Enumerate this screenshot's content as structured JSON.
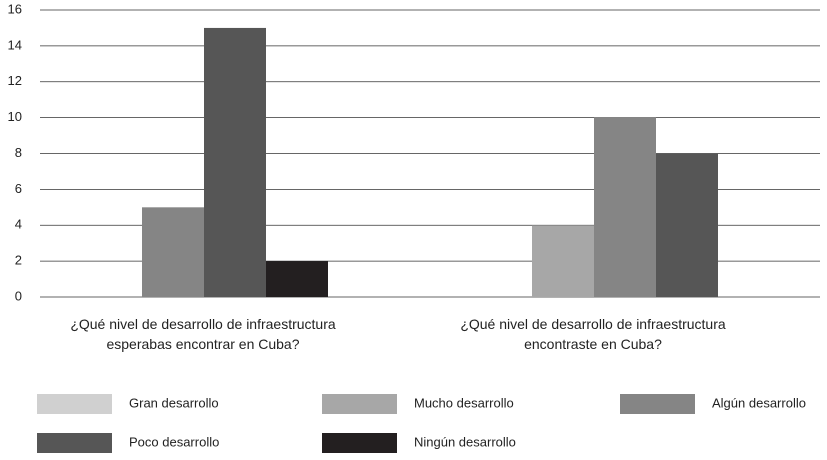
{
  "chart_data": {
    "type": "bar",
    "categories": [
      "¿Qué nivel de desarrollo de infraestructura esperabas encontrar en Cuba?",
      "¿Qué nivel de desarrollo de infraestructura encontraste en Cuba?"
    ],
    "series": [
      {
        "name": "Gran desarrollo",
        "color": "#d0d0d0",
        "values": [
          null,
          null
        ]
      },
      {
        "name": "Mucho desarrollo",
        "color": "#a7a7a7",
        "values": [
          null,
          4
        ]
      },
      {
        "name": "Algún desarrollo",
        "color": "#858585",
        "values": [
          5,
          10
        ]
      },
      {
        "name": "Poco desarrollo",
        "color": "#565656",
        "values": [
          15,
          8
        ]
      },
      {
        "name": "Ningún desarrollo",
        "color": "#231f20",
        "values": [
          2,
          null
        ]
      }
    ],
    "ylim": [
      0,
      16
    ],
    "yticks": [
      0,
      2,
      4,
      6,
      8,
      10,
      12,
      14,
      16
    ],
    "grid": true,
    "legend": "bottom"
  }
}
